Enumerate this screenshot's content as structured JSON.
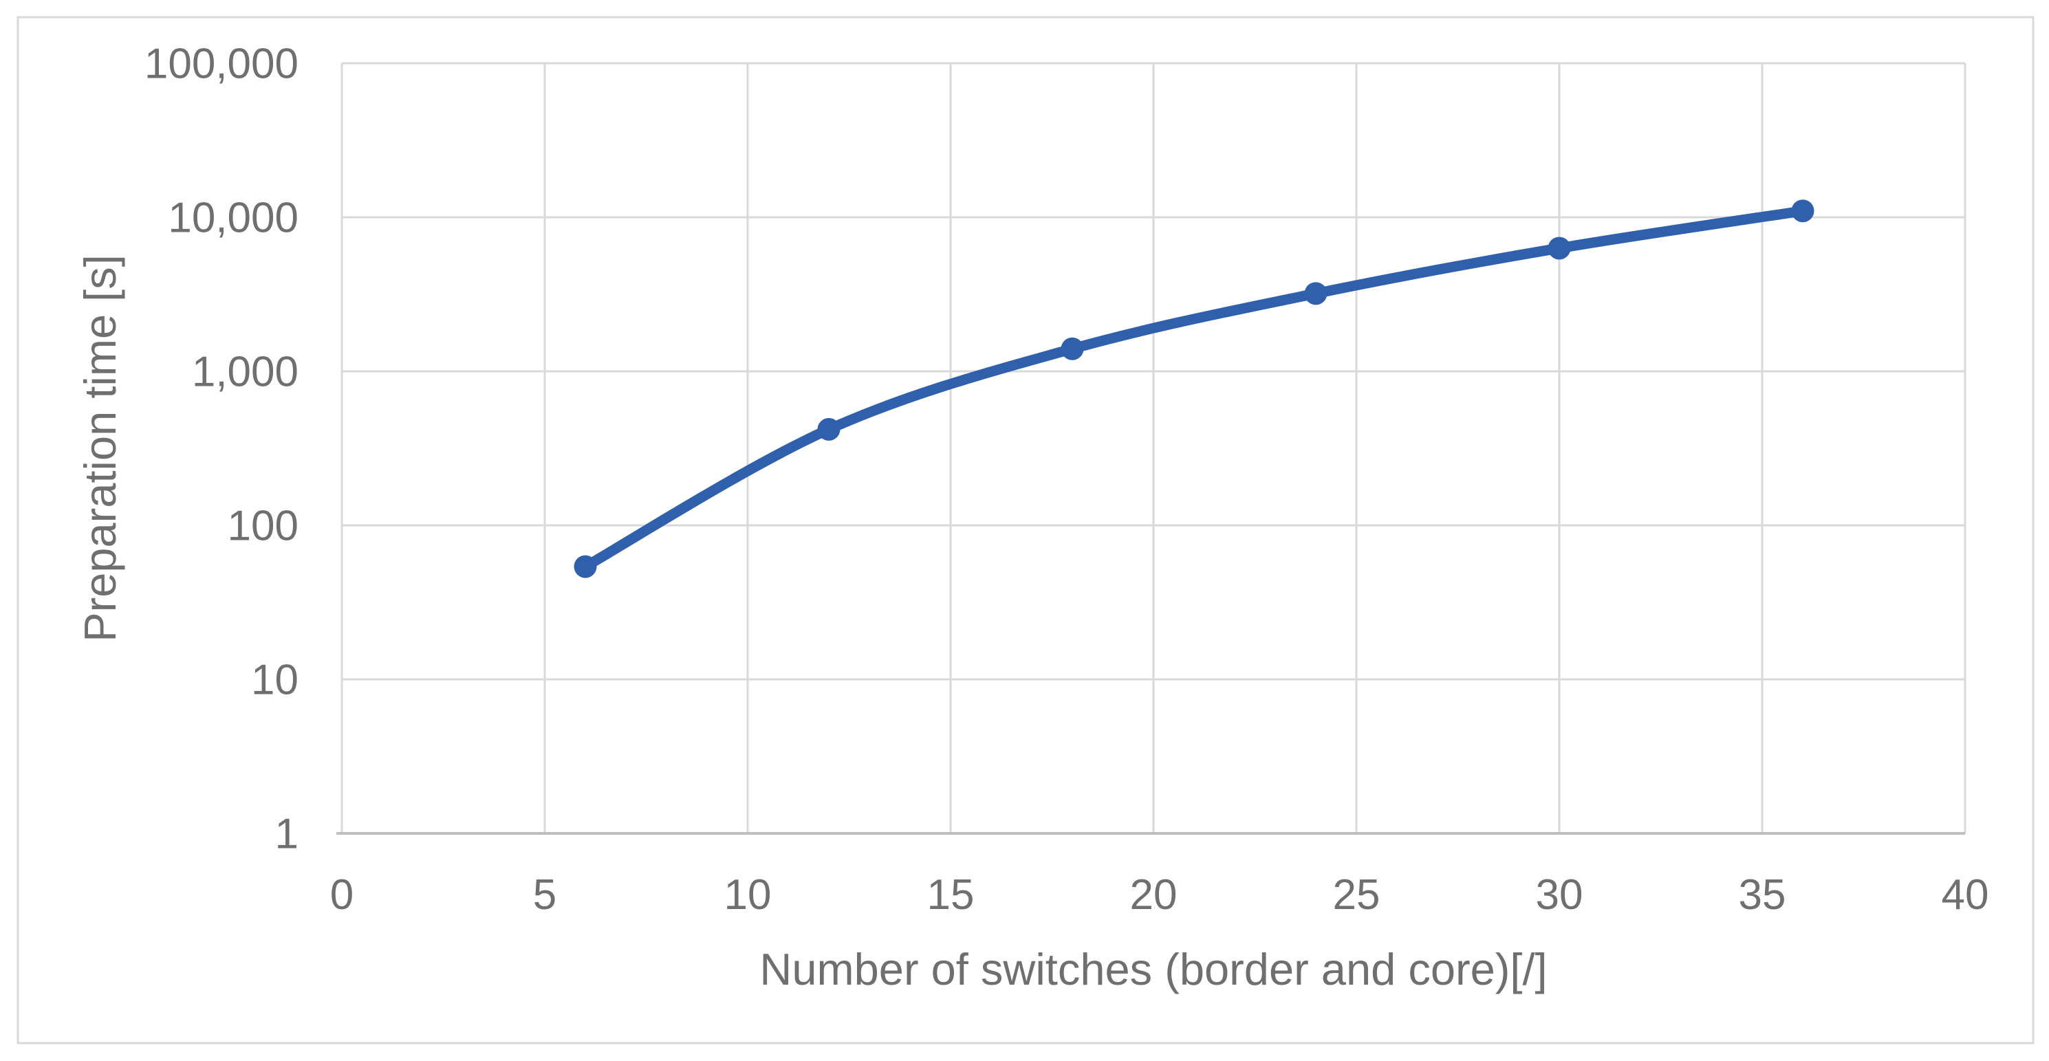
{
  "figure": {
    "background_color": "#FFFFFF",
    "border_color": "#D9D9D9"
  },
  "chart_data": {
    "type": "line",
    "title": "",
    "xlabel": "Number of switches (border and core)[/]",
    "ylabel": "Preparation time [s]",
    "x": [
      6,
      12,
      18,
      24,
      30,
      36
    ],
    "series": [
      {
        "values": [
          54,
          420,
          1400,
          3200,
          6300,
          11000
        ],
        "color": "#3060AC",
        "marker": "circle",
        "smoothed": true
      }
    ],
    "x_axis": {
      "min": 0,
      "max": 40,
      "tick_interval": 5,
      "tick_labels": [
        "0",
        "5",
        "10",
        "15",
        "20",
        "25",
        "30",
        "35",
        "40"
      ],
      "scale": "linear"
    },
    "y_axis": {
      "min": 1,
      "max": 100000,
      "tick_labels": [
        "1",
        "10",
        "100",
        "1,000",
        "10,000",
        "100,000"
      ],
      "tick_values": [
        1,
        10,
        100,
        1000,
        10000,
        100000
      ],
      "scale": "log"
    },
    "grid": true,
    "legend": "none",
    "gridline_color": "#D9D9D9",
    "axis_line_color": "#BFBFBF",
    "tick_label_color": "#6F6F6F"
  }
}
